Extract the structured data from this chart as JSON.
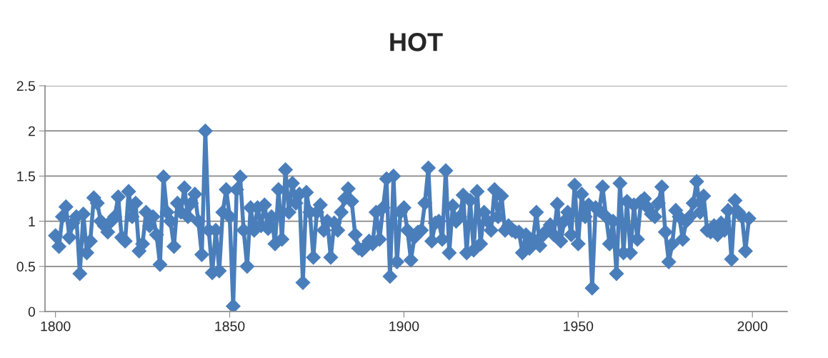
{
  "chart_data": {
    "type": "line",
    "title": "HOT",
    "marker": "diamond",
    "line_style": "solid",
    "grid": "y",
    "xlim": [
      1797,
      2010
    ],
    "xticks": [
      1800,
      1850,
      1900,
      1950,
      2000
    ],
    "ylim": [
      0,
      2.5
    ],
    "yticks": [
      0,
      0.5,
      1,
      1.5,
      2,
      2.5
    ],
    "x": [
      1800,
      1801,
      1802,
      1803,
      1804,
      1805,
      1806,
      1807,
      1808,
      1809,
      1810,
      1811,
      1812,
      1813,
      1814,
      1815,
      1816,
      1817,
      1818,
      1819,
      1820,
      1821,
      1822,
      1823,
      1824,
      1825,
      1826,
      1827,
      1828,
      1829,
      1830,
      1831,
      1832,
      1833,
      1834,
      1835,
      1836,
      1837,
      1838,
      1839,
      1840,
      1841,
      1842,
      1843,
      1844,
      1845,
      1846,
      1847,
      1848,
      1849,
      1850,
      1851,
      1852,
      1853,
      1854,
      1855,
      1856,
      1857,
      1858,
      1859,
      1860,
      1861,
      1862,
      1863,
      1864,
      1865,
      1866,
      1867,
      1868,
      1869,
      1870,
      1871,
      1872,
      1873,
      1874,
      1875,
      1876,
      1877,
      1878,
      1879,
      1880,
      1881,
      1882,
      1883,
      1884,
      1885,
      1886,
      1887,
      1888,
      1889,
      1890,
      1891,
      1892,
      1893,
      1894,
      1895,
      1896,
      1897,
      1898,
      1899,
      1900,
      1901,
      1902,
      1903,
      1904,
      1905,
      1906,
      1907,
      1908,
      1909,
      1910,
      1911,
      1912,
      1913,
      1914,
      1915,
      1916,
      1917,
      1918,
      1919,
      1920,
      1921,
      1922,
      1923,
      1924,
      1925,
      1926,
      1927,
      1928,
      1929,
      1930,
      1931,
      1932,
      1933,
      1934,
      1935,
      1936,
      1937,
      1938,
      1939,
      1940,
      1941,
      1942,
      1943,
      1944,
      1945,
      1946,
      1947,
      1948,
      1949,
      1950,
      1951,
      1952,
      1953,
      1954,
      1955,
      1956,
      1957,
      1958,
      1959,
      1960,
      1961,
      1962,
      1963,
      1964,
      1965,
      1966,
      1967,
      1968,
      1969,
      1970,
      1971,
      1972,
      1973,
      1974,
      1975,
      1976,
      1977,
      1978,
      1979,
      1980,
      1981,
      1982,
      1983,
      1984,
      1985,
      1986,
      1987,
      1988,
      1989,
      1990,
      1991,
      1992,
      1993,
      1994,
      1995,
      1996,
      1997,
      1998,
      1999
    ],
    "series": [
      {
        "color": "#4a7ebb",
        "values": [
          0.84,
          0.72,
          1.05,
          1.16,
          0.82,
          0.98,
          1.05,
          0.42,
          1.08,
          0.65,
          0.78,
          1.26,
          1.2,
          1.0,
          0.95,
          0.88,
          1.0,
          1.05,
          1.27,
          0.82,
          0.78,
          1.33,
          1.05,
          1.2,
          0.67,
          0.75,
          1.1,
          0.95,
          1.05,
          0.85,
          0.52,
          1.49,
          1.1,
          1.0,
          0.72,
          1.2,
          1.1,
          1.37,
          1.05,
          1.2,
          1.3,
          1.0,
          0.63,
          2.0,
          0.9,
          0.43,
          0.9,
          0.45,
          1.1,
          1.35,
          1.05,
          0.06,
          1.35,
          1.49,
          0.9,
          0.5,
          1.15,
          0.9,
          1.15,
          0.95,
          1.18,
          0.92,
          1.05,
          0.75,
          1.35,
          0.8,
          1.57,
          1.1,
          1.42,
          1.2,
          1.3,
          0.32,
          1.32,
          1.1,
          0.6,
          1.1,
          1.18,
          0.9,
          1.0,
          0.6,
          0.98,
          0.9,
          1.1,
          1.25,
          1.36,
          1.22,
          0.85,
          0.7,
          0.68,
          0.72,
          0.78,
          0.75,
          1.1,
          0.8,
          1.15,
          1.47,
          0.39,
          1.5,
          0.55,
          1.1,
          1.15,
          0.9,
          0.57,
          0.82,
          0.88,
          0.9,
          1.2,
          1.59,
          0.78,
          0.98,
          1.0,
          0.8,
          1.56,
          0.65,
          1.17,
          1.0,
          1.05,
          1.29,
          0.65,
          1.23,
          0.68,
          1.33,
          0.75,
          1.1,
          1.0,
          0.9,
          1.35,
          1.05,
          1.28,
          0.9,
          0.95,
          0.9,
          0.88,
          0.88,
          0.65,
          0.85,
          0.7,
          0.8,
          1.1,
          0.73,
          0.85,
          0.9,
          0.96,
          0.85,
          1.19,
          0.78,
          1.0,
          1.1,
          0.85,
          1.4,
          0.75,
          1.3,
          1.05,
          1.18,
          0.26,
          1.15,
          1.12,
          1.38,
          1.05,
          0.75,
          1.0,
          0.42,
          1.42,
          0.65,
          1.22,
          0.65,
          1.18,
          0.8,
          1.22,
          1.25,
          1.15,
          1.08,
          1.05,
          1.2,
          1.38,
          0.88,
          0.55,
          0.75,
          1.12,
          1.05,
          0.8,
          1.0,
          1.05,
          1.2,
          1.44,
          1.1,
          1.28,
          0.9,
          0.88,
          0.95,
          0.85,
          0.98,
          0.9,
          1.12,
          0.58,
          1.23,
          1.1,
          1.05,
          0.67,
          1.03
        ]
      }
    ]
  }
}
